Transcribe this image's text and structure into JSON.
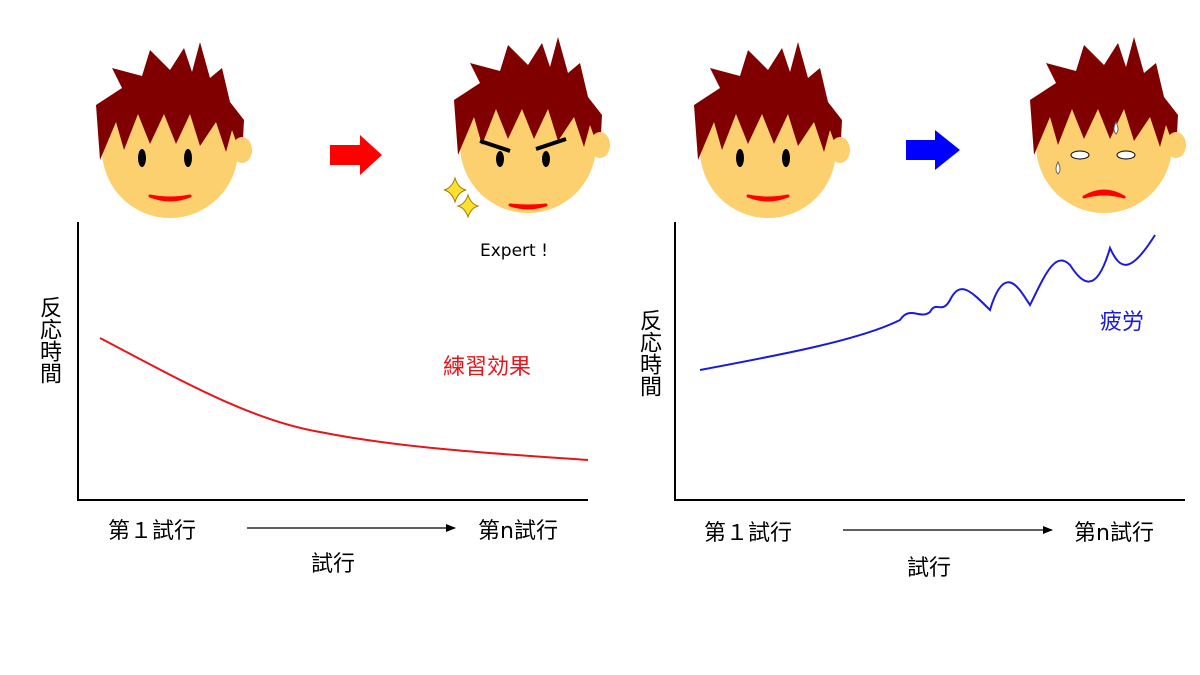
{
  "left_panel": {
    "y_label": "反応時間",
    "x_start": "第１試行",
    "x_end": "第n試行",
    "x_label": "試行",
    "curve_label": "練習効果",
    "curve_color": "#e8141a",
    "arrow_color": "#ff0000",
    "expert_text": "Expert !"
  },
  "right_panel": {
    "y_label": "反応時間",
    "x_start": "第１試行",
    "x_end": "第n試行",
    "x_label": "試行",
    "curve_label": "疲労",
    "curve_color": "#1a1adc",
    "arrow_color": "#0000ff"
  },
  "colors": {
    "hair": "#800000",
    "skin": "#fccf6f",
    "mouth": "#ff0000"
  },
  "icons": [
    "face-neutral-icon",
    "face-expert-icon",
    "face-tired-icon",
    "sparkle-icon",
    "sweat-drop-icon"
  ]
}
